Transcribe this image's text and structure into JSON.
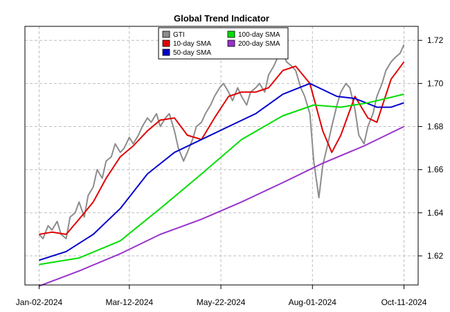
{
  "chart_data": {
    "type": "line",
    "title": "Global Trend Indicator",
    "xlabel": "",
    "ylabel": "",
    "x_ticks": [
      "Jan-02-2024",
      "Mar-12-2024",
      "May-22-2024",
      "Aug-01-2024",
      "Oct-11-2024"
    ],
    "y_ticks": [
      "1.62",
      "1.64",
      "1.66",
      "1.68",
      "1.70",
      "1.72"
    ],
    "y_tick_values": [
      1.62,
      1.64,
      1.66,
      1.68,
      1.7,
      1.72
    ],
    "xlim": [
      "2023-12-22",
      "2024-10-22"
    ],
    "ylim": [
      1.6065,
      1.7265
    ],
    "grid": true,
    "legend_position": "top-center",
    "series": [
      {
        "name": "GTI",
        "color": "#8c8c8c",
        "points": [
          [
            "2024-01-02",
            1.63
          ],
          [
            "2024-01-05",
            1.628
          ],
          [
            "2024-01-09",
            1.634
          ],
          [
            "2024-01-12",
            1.632
          ],
          [
            "2024-01-16",
            1.636
          ],
          [
            "2024-01-19",
            1.63
          ],
          [
            "2024-01-23",
            1.628
          ],
          [
            "2024-01-26",
            1.638
          ],
          [
            "2024-01-30",
            1.64
          ],
          [
            "2024-02-02",
            1.645
          ],
          [
            "2024-02-06",
            1.638
          ],
          [
            "2024-02-09",
            1.648
          ],
          [
            "2024-02-13",
            1.652
          ],
          [
            "2024-02-16",
            1.66
          ],
          [
            "2024-02-20",
            1.656
          ],
          [
            "2024-02-23",
            1.664
          ],
          [
            "2024-02-27",
            1.666
          ],
          [
            "2024-03-01",
            1.672
          ],
          [
            "2024-03-05",
            1.668
          ],
          [
            "2024-03-08",
            1.67
          ],
          [
            "2024-03-12",
            1.675
          ],
          [
            "2024-03-15",
            1.672
          ],
          [
            "2024-03-19",
            1.676
          ],
          [
            "2024-03-22",
            1.68
          ],
          [
            "2024-03-26",
            1.684
          ],
          [
            "2024-03-29",
            1.682
          ],
          [
            "2024-04-02",
            1.686
          ],
          [
            "2024-04-05",
            1.68
          ],
          [
            "2024-04-09",
            1.684
          ],
          [
            "2024-04-12",
            1.686
          ],
          [
            "2024-04-16",
            1.678
          ],
          [
            "2024-04-19",
            1.67
          ],
          [
            "2024-04-23",
            1.664
          ],
          [
            "2024-04-26",
            1.668
          ],
          [
            "2024-04-30",
            1.674
          ],
          [
            "2024-05-03",
            1.68
          ],
          [
            "2024-05-07",
            1.682
          ],
          [
            "2024-05-10",
            1.686
          ],
          [
            "2024-05-14",
            1.69
          ],
          [
            "2024-05-17",
            1.694
          ],
          [
            "2024-05-21",
            1.698
          ],
          [
            "2024-05-24",
            1.7
          ],
          [
            "2024-05-28",
            1.696
          ],
          [
            "2024-05-31",
            1.692
          ],
          [
            "2024-06-04",
            1.698
          ],
          [
            "2024-06-07",
            1.694
          ],
          [
            "2024-06-11",
            1.69
          ],
          [
            "2024-06-14",
            1.696
          ],
          [
            "2024-06-18",
            1.698
          ],
          [
            "2024-06-21",
            1.7
          ],
          [
            "2024-06-25",
            1.696
          ],
          [
            "2024-06-28",
            1.704
          ],
          [
            "2024-07-02",
            1.708
          ],
          [
            "2024-07-05",
            1.712
          ],
          [
            "2024-07-09",
            1.714
          ],
          [
            "2024-07-12",
            1.71
          ],
          [
            "2024-07-16",
            1.708
          ],
          [
            "2024-07-19",
            1.706
          ],
          [
            "2024-07-23",
            1.698
          ],
          [
            "2024-07-26",
            1.694
          ],
          [
            "2024-07-30",
            1.686
          ],
          [
            "2024-08-02",
            1.664
          ],
          [
            "2024-08-06",
            1.647
          ],
          [
            "2024-08-09",
            1.662
          ],
          [
            "2024-08-13",
            1.672
          ],
          [
            "2024-08-16",
            1.68
          ],
          [
            "2024-08-20",
            1.69
          ],
          [
            "2024-08-23",
            1.696
          ],
          [
            "2024-08-27",
            1.7
          ],
          [
            "2024-08-30",
            1.698
          ],
          [
            "2024-09-03",
            1.688
          ],
          [
            "2024-09-06",
            1.676
          ],
          [
            "2024-09-10",
            1.672
          ],
          [
            "2024-09-13",
            1.68
          ],
          [
            "2024-09-17",
            1.686
          ],
          [
            "2024-09-20",
            1.694
          ],
          [
            "2024-09-24",
            1.7
          ],
          [
            "2024-09-27",
            1.706
          ],
          [
            "2024-10-01",
            1.71
          ],
          [
            "2024-10-04",
            1.712
          ],
          [
            "2024-10-08",
            1.714
          ],
          [
            "2024-10-11",
            1.718
          ]
        ]
      },
      {
        "name": "10-day SMA",
        "color": "#e00000",
        "points": [
          [
            "2024-01-02",
            1.63
          ],
          [
            "2024-01-12",
            1.631
          ],
          [
            "2024-01-23",
            1.63
          ],
          [
            "2024-02-02",
            1.637
          ],
          [
            "2024-02-13",
            1.645
          ],
          [
            "2024-02-23",
            1.656
          ],
          [
            "2024-03-05",
            1.666
          ],
          [
            "2024-03-15",
            1.671
          ],
          [
            "2024-03-26",
            1.678
          ],
          [
            "2024-04-05",
            1.683
          ],
          [
            "2024-04-16",
            1.684
          ],
          [
            "2024-04-26",
            1.676
          ],
          [
            "2024-05-07",
            1.674
          ],
          [
            "2024-05-17",
            1.684
          ],
          [
            "2024-05-28",
            1.694
          ],
          [
            "2024-06-07",
            1.696
          ],
          [
            "2024-06-18",
            1.696
          ],
          [
            "2024-06-28",
            1.698
          ],
          [
            "2024-07-09",
            1.706
          ],
          [
            "2024-07-19",
            1.708
          ],
          [
            "2024-07-30",
            1.7
          ],
          [
            "2024-08-09",
            1.678
          ],
          [
            "2024-08-16",
            1.668
          ],
          [
            "2024-08-23",
            1.676
          ],
          [
            "2024-09-03",
            1.694
          ],
          [
            "2024-09-13",
            1.684
          ],
          [
            "2024-09-20",
            1.682
          ],
          [
            "2024-10-01",
            1.702
          ],
          [
            "2024-10-11",
            1.71
          ]
        ]
      },
      {
        "name": "50-day SMA",
        "color": "#0000cc",
        "points": [
          [
            "2024-01-02",
            1.618
          ],
          [
            "2024-01-23",
            1.622
          ],
          [
            "2024-02-13",
            1.63
          ],
          [
            "2024-03-05",
            1.642
          ],
          [
            "2024-03-26",
            1.658
          ],
          [
            "2024-04-16",
            1.668
          ],
          [
            "2024-05-07",
            1.674
          ],
          [
            "2024-05-28",
            1.68
          ],
          [
            "2024-06-18",
            1.686
          ],
          [
            "2024-07-09",
            1.695
          ],
          [
            "2024-07-30",
            1.7
          ],
          [
            "2024-08-20",
            1.694
          ],
          [
            "2024-09-03",
            1.693
          ],
          [
            "2024-09-20",
            1.689
          ],
          [
            "2024-10-01",
            1.689
          ],
          [
            "2024-10-11",
            1.691
          ]
        ]
      },
      {
        "name": "100-day SMA",
        "color": "#00dd00",
        "points": [
          [
            "2024-01-02",
            1.616
          ],
          [
            "2024-02-02",
            1.619
          ],
          [
            "2024-03-05",
            1.627
          ],
          [
            "2024-04-05",
            1.642
          ],
          [
            "2024-05-07",
            1.658
          ],
          [
            "2024-06-07",
            1.674
          ],
          [
            "2024-07-09",
            1.685
          ],
          [
            "2024-08-02",
            1.69
          ],
          [
            "2024-08-23",
            1.689
          ],
          [
            "2024-09-13",
            1.691
          ],
          [
            "2024-10-11",
            1.695
          ]
        ]
      },
      {
        "name": "200-day SMA",
        "color": "#9932cc",
        "points": [
          [
            "2024-01-02",
            1.606
          ],
          [
            "2024-02-02",
            1.613
          ],
          [
            "2024-03-05",
            1.621
          ],
          [
            "2024-04-05",
            1.63
          ],
          [
            "2024-05-07",
            1.637
          ],
          [
            "2024-06-07",
            1.645
          ],
          [
            "2024-07-09",
            1.654
          ],
          [
            "2024-08-09",
            1.663
          ],
          [
            "2024-09-10",
            1.671
          ],
          [
            "2024-10-11",
            1.68
          ]
        ]
      }
    ]
  }
}
